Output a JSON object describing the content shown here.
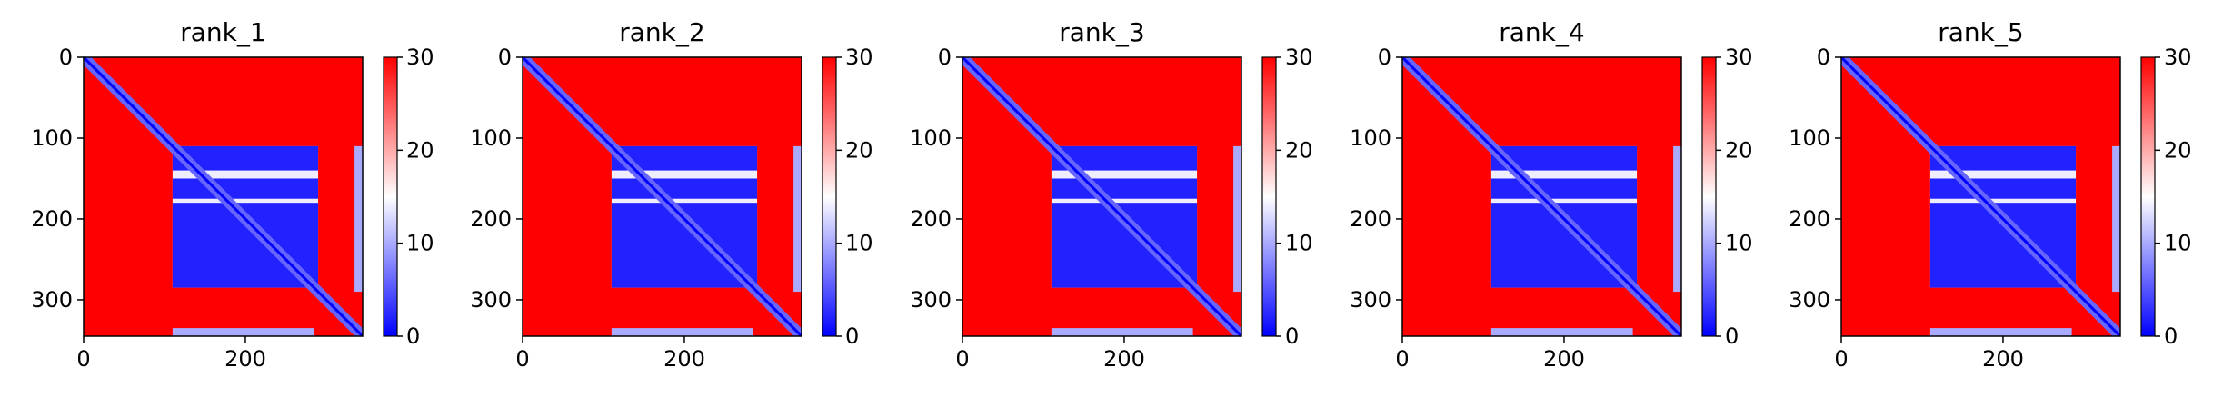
{
  "figure": {
    "panels": [
      {
        "title": "rank_1"
      },
      {
        "title": "rank_2"
      },
      {
        "title": "rank_3"
      },
      {
        "title": "rank_4"
      },
      {
        "title": "rank_5"
      }
    ]
  },
  "chart_data": {
    "type": "heatmap",
    "panel_titles": [
      "rank_1",
      "rank_2",
      "rank_3",
      "rank_4",
      "rank_5"
    ],
    "x_ticks": [
      0,
      200
    ],
    "y_ticks": [
      0,
      100,
      200,
      300
    ],
    "x_range": [
      0,
      345
    ],
    "y_range": [
      0,
      345
    ],
    "colorbar": {
      "ticks": [
        0,
        10,
        20,
        30
      ],
      "range": [
        0,
        30
      ]
    },
    "colormap": {
      "low": "#0000ff",
      "mid": "#ffffff",
      "high": "#ff0000"
    },
    "regions": [
      {
        "x": [
          0,
          345
        ],
        "y": [
          0,
          345
        ],
        "value": 30
      },
      {
        "x": [
          110,
          290
        ],
        "y": [
          110,
          285
        ],
        "value": 14
      },
      {
        "x": [
          110,
          290
        ],
        "y": [
          110,
          140
        ],
        "value": 2
      },
      {
        "x": [
          110,
          290
        ],
        "y": [
          150,
          175
        ],
        "value": 2
      },
      {
        "x": [
          110,
          290
        ],
        "y": [
          180,
          285
        ],
        "value": 2
      },
      {
        "x": [
          110,
          285
        ],
        "y": [
          335,
          345
        ],
        "value": 10
      },
      {
        "x": [
          335,
          345
        ],
        "y": [
          110,
          290
        ],
        "value": 10
      }
    ],
    "diagonal": {
      "value": 0,
      "near_value": 6
    }
  }
}
